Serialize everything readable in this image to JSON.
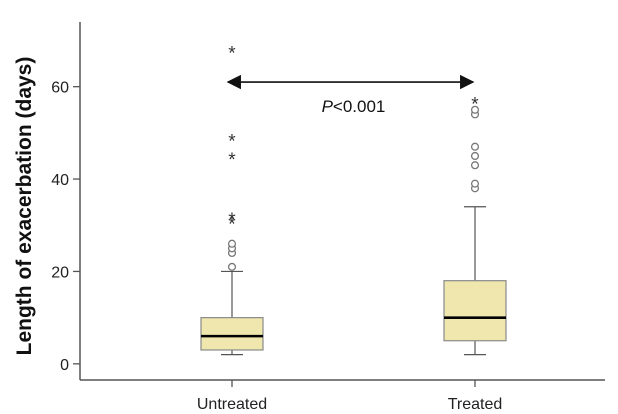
{
  "chart_data": {
    "type": "boxplot",
    "ylabel": "Length of exacerbation (days)",
    "ylim": [
      -3.5,
      74
    ],
    "yticks": [
      0,
      20,
      40,
      60
    ],
    "categories": [
      "Untreated",
      "Treated"
    ],
    "boxes": [
      {
        "name": "Untreated",
        "whisker_low": 2,
        "q1": 3,
        "median": 6,
        "q3": 10,
        "whisker_high": 20,
        "outliers": [
          21,
          24,
          25,
          26
        ],
        "extremes": [
          31,
          32,
          45,
          49,
          68
        ]
      },
      {
        "name": "Treated",
        "whisker_low": 2,
        "q1": 5,
        "median": 10,
        "q3": 18,
        "whisker_high": 34,
        "outliers": [
          38,
          39,
          43,
          45,
          47,
          54,
          55
        ],
        "extremes": [
          57
        ]
      }
    ],
    "annotation": {
      "prefix": "P",
      "text": "<0.001",
      "from": "Untreated",
      "to": "Treated",
      "y": 61
    },
    "outlier_marker": "circle",
    "extreme_marker": "*",
    "box_fill": "#efe7ad",
    "box_stroke": "#8a8a8a",
    "median_color": "#000000"
  }
}
